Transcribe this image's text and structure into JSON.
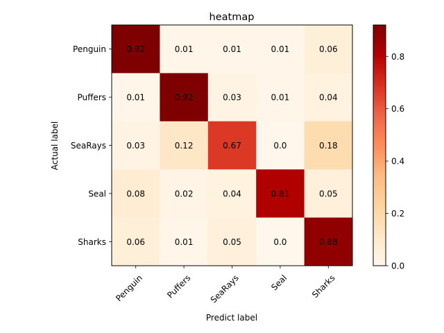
{
  "chart_data": {
    "type": "heatmap",
    "title": "heatmap",
    "xlabel": "Predict label",
    "ylabel": "Actual label",
    "x_categories": [
      "Penguin",
      "Puffers",
      "SeaRays",
      "Seal",
      "Sharks"
    ],
    "y_categories": [
      "Penguin",
      "Puffers",
      "SeaRays",
      "Seal",
      "Sharks"
    ],
    "values": [
      [
        0.92,
        0.01,
        0.01,
        0.01,
        0.06
      ],
      [
        0.01,
        0.92,
        0.03,
        0.01,
        0.04
      ],
      [
        0.03,
        0.12,
        0.67,
        0.0,
        0.18
      ],
      [
        0.08,
        0.02,
        0.04,
        0.81,
        0.05
      ],
      [
        0.06,
        0.01,
        0.05,
        0.0,
        0.88
      ]
    ],
    "cell_labels": [
      [
        "0.92",
        "0.01",
        "0.01",
        "0.01",
        "0.06"
      ],
      [
        "0.01",
        "0.92",
        "0.03",
        "0.01",
        "0.04"
      ],
      [
        "0.03",
        "0.12",
        "0.67",
        "0.0",
        "0.18"
      ],
      [
        "0.08",
        "0.02",
        "0.04",
        "0.81",
        "0.05"
      ],
      [
        "0.06",
        "0.01",
        "0.05",
        "0.0",
        "0.88"
      ]
    ],
    "colormap": "OrRd",
    "vmin": 0.0,
    "vmax": 0.92,
    "colorbar": {
      "ticks": [
        0.0,
        0.2,
        0.4,
        0.6,
        0.8
      ],
      "tick_labels": [
        "0.0",
        "0.2",
        "0.4",
        "0.6",
        "0.8"
      ]
    }
  }
}
